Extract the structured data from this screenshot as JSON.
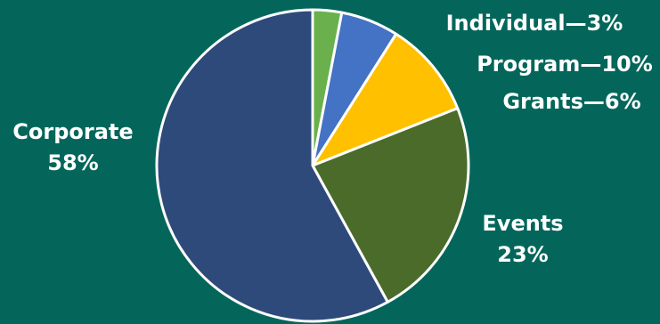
{
  "chart_data": {
    "type": "pie",
    "slices": [
      {
        "label": "Individual",
        "value": 3,
        "text": "Individual—3%",
        "color": "#6ab04c"
      },
      {
        "label": "Grants",
        "value": 6,
        "text": "Grants—6%",
        "color": "#4472c4"
      },
      {
        "label": "Program",
        "value": 10,
        "text": "Program—10%",
        "color": "#ffc000"
      },
      {
        "label": "Events",
        "value": 23,
        "text_line1": "Events",
        "text_line2": "23%",
        "color": "#4a6b2a"
      },
      {
        "label": "Corporate",
        "value": 58,
        "text_line1": "Corporate",
        "text_line2": "58%",
        "color": "#2e4a7a"
      }
    ],
    "start_angle_deg": 0,
    "direction": "clockwise"
  }
}
